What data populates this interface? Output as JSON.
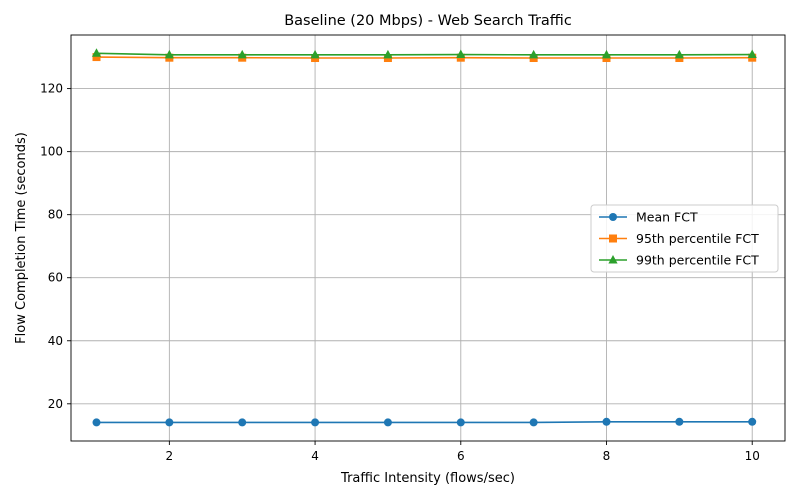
{
  "chart_data": {
    "type": "line",
    "title": "Baseline (20 Mbps) - Web Search Traffic",
    "xlabel": "Traffic Intensity (flows/sec)",
    "ylabel": "Flow Completion Time (seconds)",
    "xlim": [
      0.65,
      10.45
    ],
    "ylim": [
      8.2,
      137.0
    ],
    "xticks": [
      2,
      4,
      6,
      8,
      10
    ],
    "yticks": [
      20,
      40,
      60,
      80,
      100,
      120
    ],
    "grid": true,
    "legend_position": "center-right",
    "x": [
      1,
      2,
      3,
      4,
      5,
      6,
      7,
      8,
      9,
      10
    ],
    "series": [
      {
        "name": "Mean FCT",
        "color": "#1f77b4",
        "marker": "circle",
        "values": [
          14.1,
          14.1,
          14.1,
          14.1,
          14.1,
          14.1,
          14.1,
          14.3,
          14.3,
          14.3
        ]
      },
      {
        "name": "95th percentile FCT",
        "color": "#ff7f0e",
        "marker": "square",
        "values": [
          130.0,
          129.8,
          129.8,
          129.7,
          129.7,
          129.8,
          129.7,
          129.7,
          129.7,
          129.8
        ]
      },
      {
        "name": "99th percentile FCT",
        "color": "#2ca02c",
        "marker": "triangle",
        "values": [
          131.2,
          130.7,
          130.7,
          130.7,
          130.7,
          130.8,
          130.7,
          130.7,
          130.7,
          130.8
        ]
      }
    ]
  }
}
